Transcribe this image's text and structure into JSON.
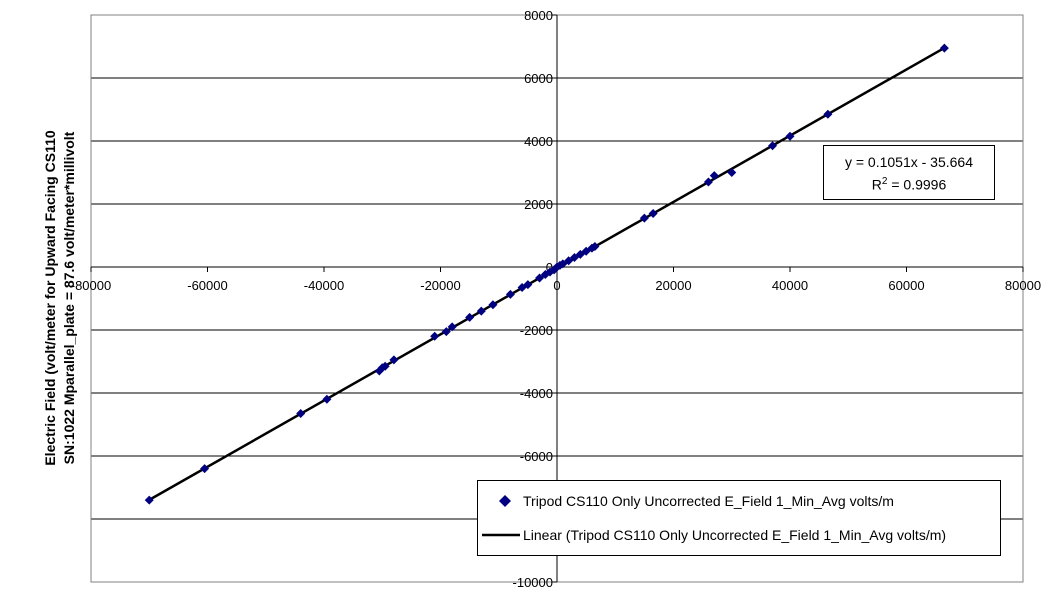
{
  "chart_data": {
    "type": "scatter",
    "title": "",
    "xlabel": "",
    "ylabel_lines": [
      "Electric Field (volt/meter for Upward Facing CS110",
      "SN:1022 Mparallel_plate = 87.6 volt/meter*millivolt"
    ],
    "xlim": [
      -80000,
      80000
    ],
    "ylim": [
      -10000,
      8000
    ],
    "x_ticks": [
      "-80000",
      "-60000",
      "-40000",
      "-20000",
      "0",
      "20000",
      "40000",
      "60000",
      "80000"
    ],
    "y_ticks": [
      "8000",
      "6000",
      "4000",
      "2000",
      "0",
      "-2000",
      "-4000",
      "-6000",
      "-8000",
      "-10000"
    ],
    "grid": "horizontal",
    "series": [
      {
        "name": "Tripod CS110 Only Uncorrected E_Field 1_Min_Avg volts/m",
        "marker": "diamond",
        "color": "#000080",
        "x": [
          -70000,
          -60500,
          -44000,
          -39500,
          -30500,
          -30000,
          -29500,
          -28000,
          -21000,
          -19000,
          -18000,
          -15000,
          -13000,
          -11000,
          -8000,
          -6000,
          -5000,
          -3000,
          -2000,
          -1200,
          -500,
          0,
          500,
          1000,
          2000,
          3000,
          4000,
          5000,
          6000,
          6500,
          15000,
          16500,
          26000,
          27000,
          30000,
          37000,
          40000,
          46500,
          66500
        ],
        "y": [
          -7400,
          -6400,
          -4650,
          -4200,
          -3300,
          -3200,
          -3150,
          -2950,
          -2200,
          -2050,
          -1900,
          -1600,
          -1400,
          -1200,
          -870,
          -650,
          -560,
          -350,
          -240,
          -160,
          -90,
          0,
          50,
          100,
          200,
          300,
          400,
          500,
          600,
          650,
          1550,
          1700,
          2700,
          2900,
          3000,
          3850,
          4150,
          4850,
          6950
        ]
      },
      {
        "name": "Linear (Tripod CS110 Only Uncorrected E_Field 1_Min_Avg volts/m)",
        "type": "line",
        "color": "#000000",
        "x": [
          -70000,
          66500
        ],
        "y": [
          -7392.7,
          6953.5
        ]
      }
    ],
    "trendline": {
      "equation": "y = 0.1051x - 35.664",
      "r2_prefix": "R",
      "r2_sup": "2",
      "r2_suffix": " = 0.9996",
      "slope": 0.1051,
      "intercept": -35.664
    },
    "legend_placement": "bottom-right"
  }
}
